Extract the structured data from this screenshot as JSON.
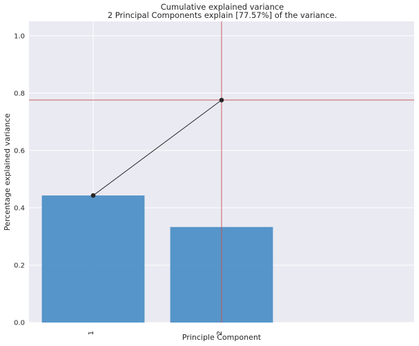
{
  "chart_data": {
    "type": "bar",
    "title": "Cumulative explained variance",
    "subtitle": "2 Principal Components explain [77.57%] of the variance.",
    "xlabel": "Principle Component",
    "ylabel": "Percentage explained variance",
    "categories": [
      "1",
      "2"
    ],
    "series": [
      {
        "kind": "bar",
        "values": [
          0.443,
          0.333
        ]
      },
      {
        "kind": "line",
        "values": [
          0.443,
          0.7757
        ]
      }
    ],
    "reference_lines": {
      "y": 0.7757,
      "x_category": "2",
      "color": "#c44e52"
    },
    "ylim": [
      0,
      1.05
    ],
    "xlim": [
      -0.5,
      2.5
    ],
    "y_ticks": [
      0.0,
      0.2,
      0.4,
      0.6,
      0.8,
      1.0
    ],
    "y_tick_labels": [
      "0.0",
      "0.2",
      "0.4",
      "0.6",
      "0.8",
      "1.0"
    ],
    "x_tick_labels": [
      "1",
      "2"
    ],
    "grid": true,
    "legend": "none",
    "colors": {
      "bar": "#4c8fc6",
      "line": "#262626",
      "reference": "#c44e52",
      "background": "#eaeaf2"
    }
  }
}
